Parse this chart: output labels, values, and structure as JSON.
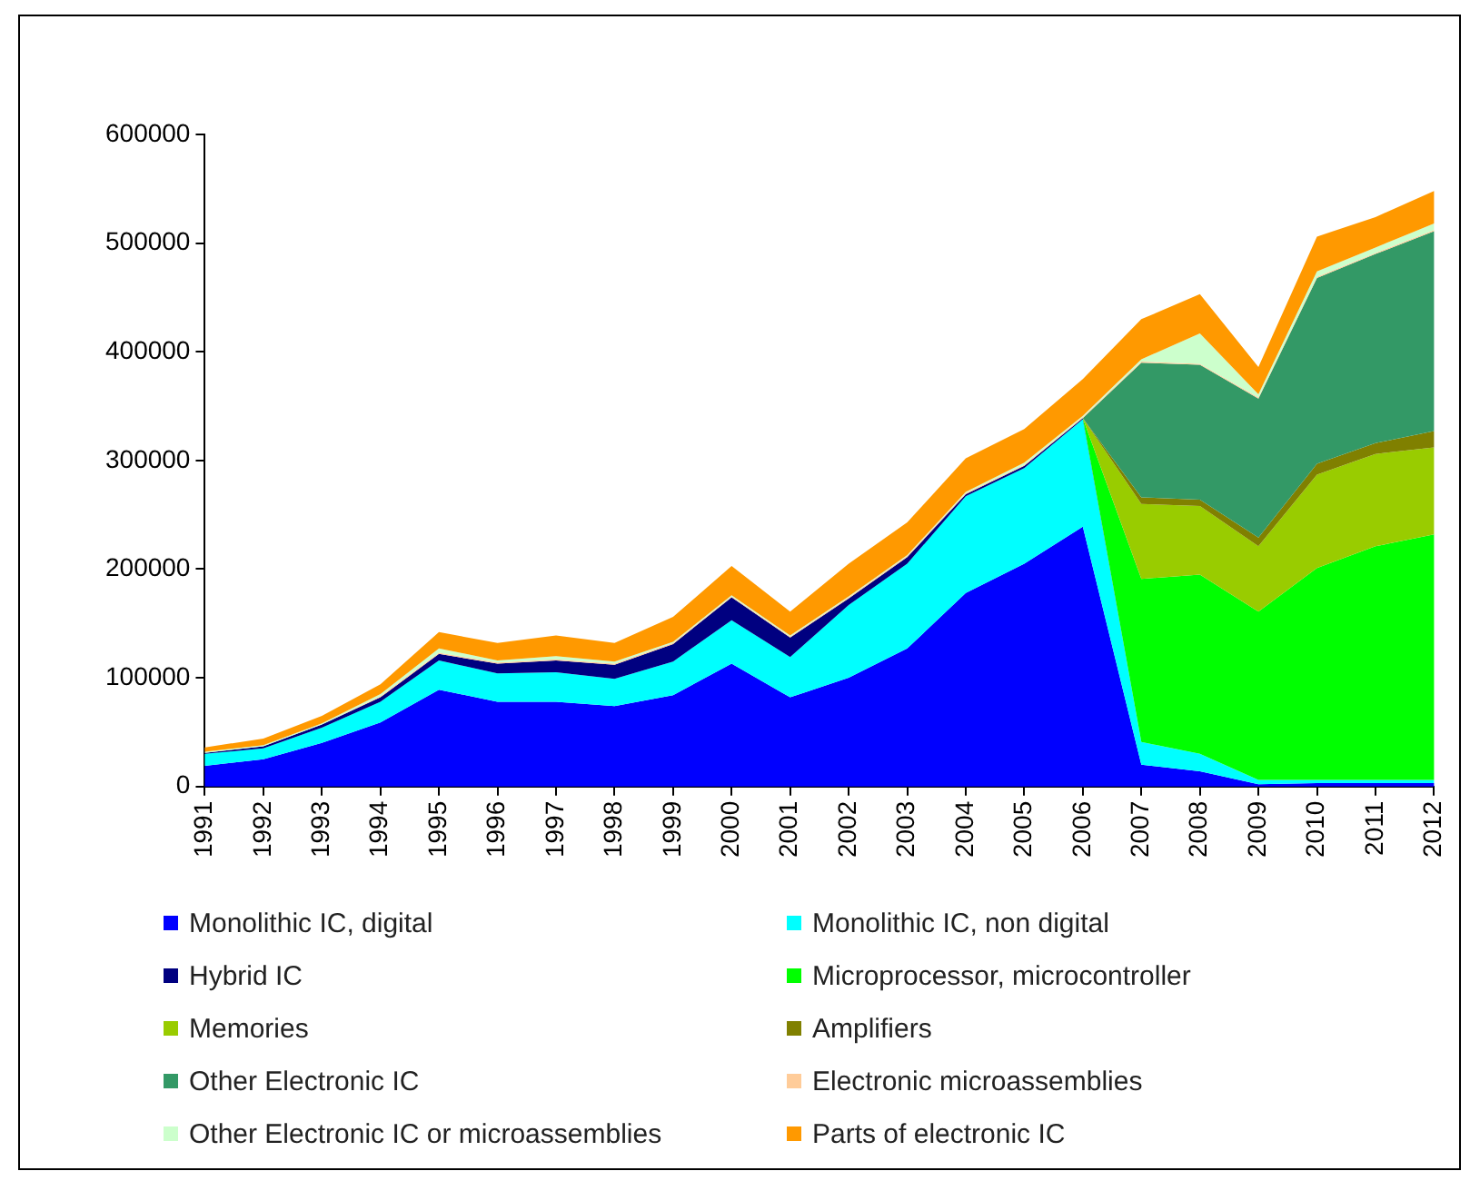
{
  "chart_data": {
    "type": "area",
    "stacked": true,
    "grid": false,
    "legend": "bottom",
    "categories": [
      "1991",
      "1992",
      "1993",
      "1994",
      "1995",
      "1996",
      "1997",
      "1998",
      "1999",
      "2000",
      "2001",
      "2002",
      "2003",
      "2004",
      "2005",
      "2006",
      "2007",
      "2008",
      "2009",
      "2010",
      "2011",
      "2012"
    ],
    "ylim": [
      0,
      600000
    ],
    "yticks": [
      0,
      100000,
      200000,
      300000,
      400000,
      500000,
      600000
    ],
    "series": [
      {
        "name": "Monolithic IC, digital",
        "color": "#0000ff",
        "values": [
          19000,
          25000,
          40000,
          59000,
          89000,
          78000,
          78000,
          74000,
          84000,
          113000,
          82000,
          100000,
          127000,
          178000,
          205000,
          239000,
          20000,
          14000,
          2000,
          3000,
          3000,
          3000
        ]
      },
      {
        "name": "Monolithic IC, non digital",
        "color": "#00ffff",
        "values": [
          11000,
          10000,
          14000,
          19000,
          27000,
          26000,
          27000,
          25000,
          31000,
          40000,
          37000,
          67000,
          78000,
          89000,
          88000,
          99000,
          21000,
          16000,
          4000,
          3000,
          3000,
          3000
        ]
      },
      {
        "name": "Hybrid IC",
        "color": "#000080",
        "values": [
          1000,
          2000,
          3000,
          4000,
          6000,
          9000,
          11000,
          13000,
          16000,
          21000,
          18000,
          6000,
          6000,
          2000,
          2000,
          1000,
          0,
          null,
          null,
          null,
          null,
          null
        ]
      },
      {
        "name": "Microprocessor, microcontroller",
        "color": "#00ff00",
        "values": [
          null,
          null,
          null,
          null,
          null,
          null,
          null,
          null,
          null,
          null,
          null,
          null,
          null,
          null,
          null,
          0,
          150000,
          165000,
          155000,
          195000,
          215000,
          226000
        ]
      },
      {
        "name": "Memories",
        "color": "#99cc00",
        "values": [
          null,
          null,
          null,
          null,
          null,
          null,
          null,
          null,
          null,
          null,
          null,
          null,
          null,
          null,
          null,
          0,
          69000,
          63000,
          60000,
          86000,
          85000,
          80000
        ]
      },
      {
        "name": "Amplifiers",
        "color": "#808000",
        "values": [
          null,
          null,
          null,
          null,
          null,
          null,
          null,
          null,
          null,
          null,
          null,
          null,
          null,
          null,
          null,
          0,
          6000,
          6000,
          8000,
          10000,
          10000,
          15000
        ]
      },
      {
        "name": "Other Electronic IC",
        "color": "#339966",
        "values": [
          null,
          null,
          null,
          null,
          null,
          null,
          null,
          null,
          null,
          null,
          null,
          null,
          null,
          null,
          null,
          0,
          124000,
          124000,
          128000,
          171000,
          174000,
          184000
        ]
      },
      {
        "name": "Electronic microassemblies",
        "color": "#ffcc99",
        "values": [
          null,
          null,
          0,
          1000,
          1000,
          1000,
          1000,
          1000,
          1000,
          1000,
          1000,
          1000,
          1000,
          1000,
          1000,
          1000,
          1000,
          1000,
          1000,
          1000,
          1000,
          1000
        ]
      },
      {
        "name": "Other Electronic IC or microassemblies",
        "color": "#ccffcc",
        "values": [
          1000,
          1000,
          1000,
          2000,
          4000,
          2000,
          3000,
          2000,
          1000,
          1000,
          1000,
          1000,
          1000,
          1000,
          2000,
          1000,
          2000,
          28000,
          3000,
          5000,
          5000,
          6000
        ]
      },
      {
        "name": "Parts of electronic IC",
        "color": "#ff9900",
        "values": [
          4000,
          6000,
          7000,
          9000,
          15000,
          16000,
          19000,
          17000,
          23000,
          27000,
          22000,
          30000,
          30000,
          31000,
          31000,
          34000,
          37000,
          36000,
          25000,
          32000,
          28000,
          30000
        ]
      }
    ]
  }
}
